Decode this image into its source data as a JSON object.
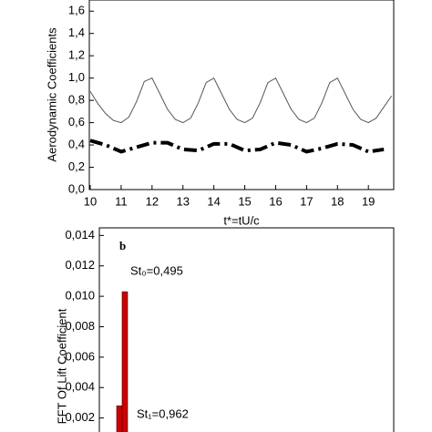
{
  "chart_data": [
    {
      "type": "line",
      "y_label": "Aerodynamic Coefficients",
      "x_label": "t*=tU/c",
      "xlim": [
        9.97,
        19.82
      ],
      "ylim": [
        0,
        1.7
      ],
      "xticks": [
        10,
        11,
        12,
        13,
        14,
        15,
        16,
        17,
        18,
        19
      ],
      "yticks": [
        {
          "value": 0,
          "label": "0,0"
        },
        {
          "value": 0.2,
          "label": "0,2"
        },
        {
          "value": 0.4,
          "label": "0,4"
        },
        {
          "value": 0.6,
          "label": "0,6"
        },
        {
          "value": 0.8,
          "label": "0,8"
        },
        {
          "value": 1.0,
          "label": "1,0"
        },
        {
          "value": 1.2,
          "label": "1,2"
        },
        {
          "value": 1.4,
          "label": "1,4"
        },
        {
          "value": 1.6,
          "label": "1,6"
        }
      ],
      "series": [
        {
          "color": "#555555",
          "x": [
            10,
            10.25,
            10.5,
            10.75,
            11,
            11.25,
            11.5,
            11.75,
            12,
            12.25,
            12.5,
            12.75,
            13,
            13.25,
            13.5,
            13.75,
            14,
            14.25,
            14.5,
            14.75,
            15,
            15.25,
            15.5,
            15.75,
            16,
            16.25,
            16.5,
            16.75,
            17,
            17.25,
            17.5,
            17.75,
            18,
            18.25,
            18.5,
            18.75,
            19,
            19.25,
            19.5,
            19.75
          ],
          "values": [
            0.88,
            0.77,
            0.68,
            0.62,
            0.6,
            0.65,
            0.79,
            0.97,
            1.0,
            0.86,
            0.72,
            0.63,
            0.6,
            0.64,
            0.78,
            0.96,
            1.0,
            0.86,
            0.72,
            0.63,
            0.6,
            0.64,
            0.78,
            0.96,
            1.0,
            0.86,
            0.72,
            0.63,
            0.6,
            0.64,
            0.78,
            0.96,
            1.0,
            0.86,
            0.72,
            0.63,
            0.6,
            0.64,
            0.74,
            0.84
          ]
        },
        {
          "color": "#000000",
          "x": [
            10,
            10.5,
            11,
            11.5,
            12,
            12.5,
            13,
            13.5,
            14,
            14.5,
            15,
            15.5,
            16,
            16.5,
            17,
            17.5,
            18,
            18.5,
            19,
            19.5
          ],
          "values": [
            0.44,
            0.4,
            0.34,
            0.38,
            0.42,
            0.42,
            0.36,
            0.35,
            0.41,
            0.41,
            0.35,
            0.36,
            0.42,
            0.4,
            0.34,
            0.37,
            0.41,
            0.4,
            0.34,
            0.36
          ]
        }
      ]
    },
    {
      "type": "bar",
      "y_label": "FFT Of Lift Coefficient",
      "ylim": [
        0,
        0.0145
      ],
      "yticks": [
        {
          "value": 0.002,
          "label": "0,002"
        },
        {
          "value": 0.004,
          "label": "0,004"
        },
        {
          "value": 0.006,
          "label": "0,006"
        },
        {
          "value": 0.008,
          "label": "0,008"
        },
        {
          "value": 0.01,
          "label": "0,010"
        },
        {
          "value": 0.012,
          "label": "0,012"
        },
        {
          "value": 0.014,
          "label": "0,014"
        }
      ],
      "categories": [
        null,
        null
      ],
      "values": [
        0.0028,
        0.0103
      ],
      "color": "#cc0000",
      "annotations": [
        "b",
        "St₀=0,495",
        "St₁=0,962"
      ]
    }
  ]
}
